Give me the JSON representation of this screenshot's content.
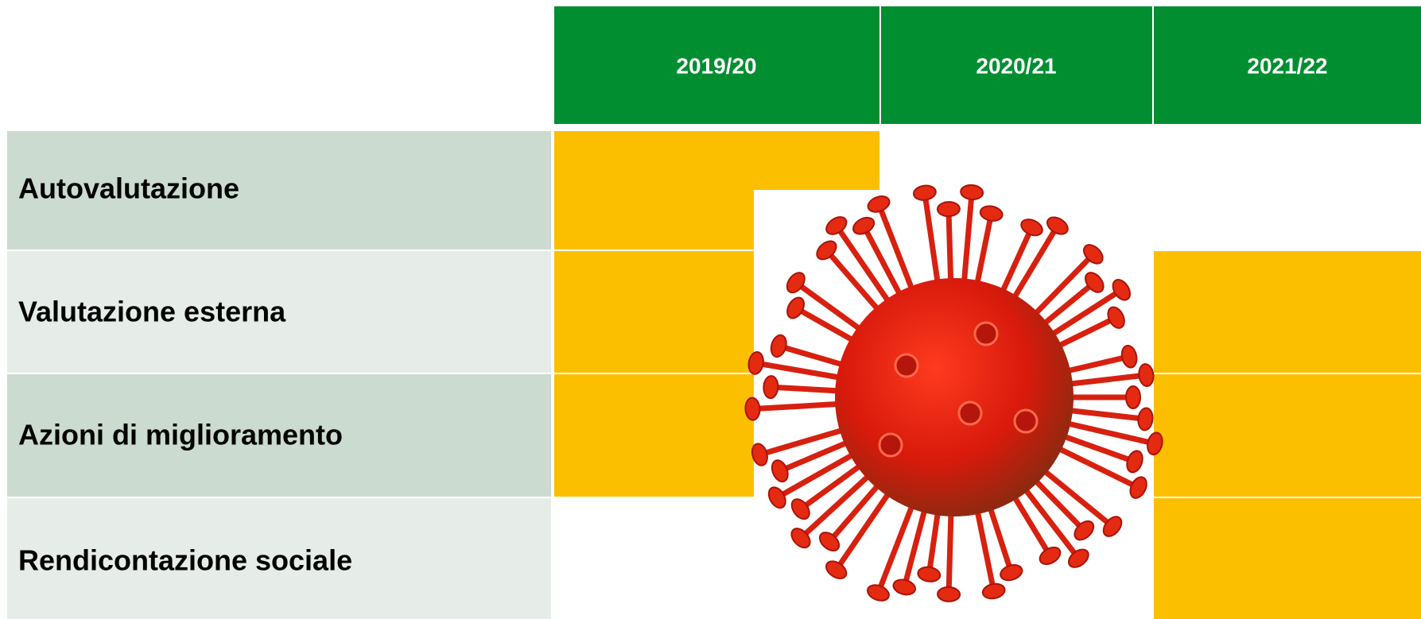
{
  "table": {
    "columns": [
      "2019/20",
      "2020/21",
      "2021/22"
    ],
    "rows": [
      "Autovalutazione",
      "Valutazione esterna",
      "Azioni di miglioramento",
      "Rendicontazione sociale"
    ]
  }
}
